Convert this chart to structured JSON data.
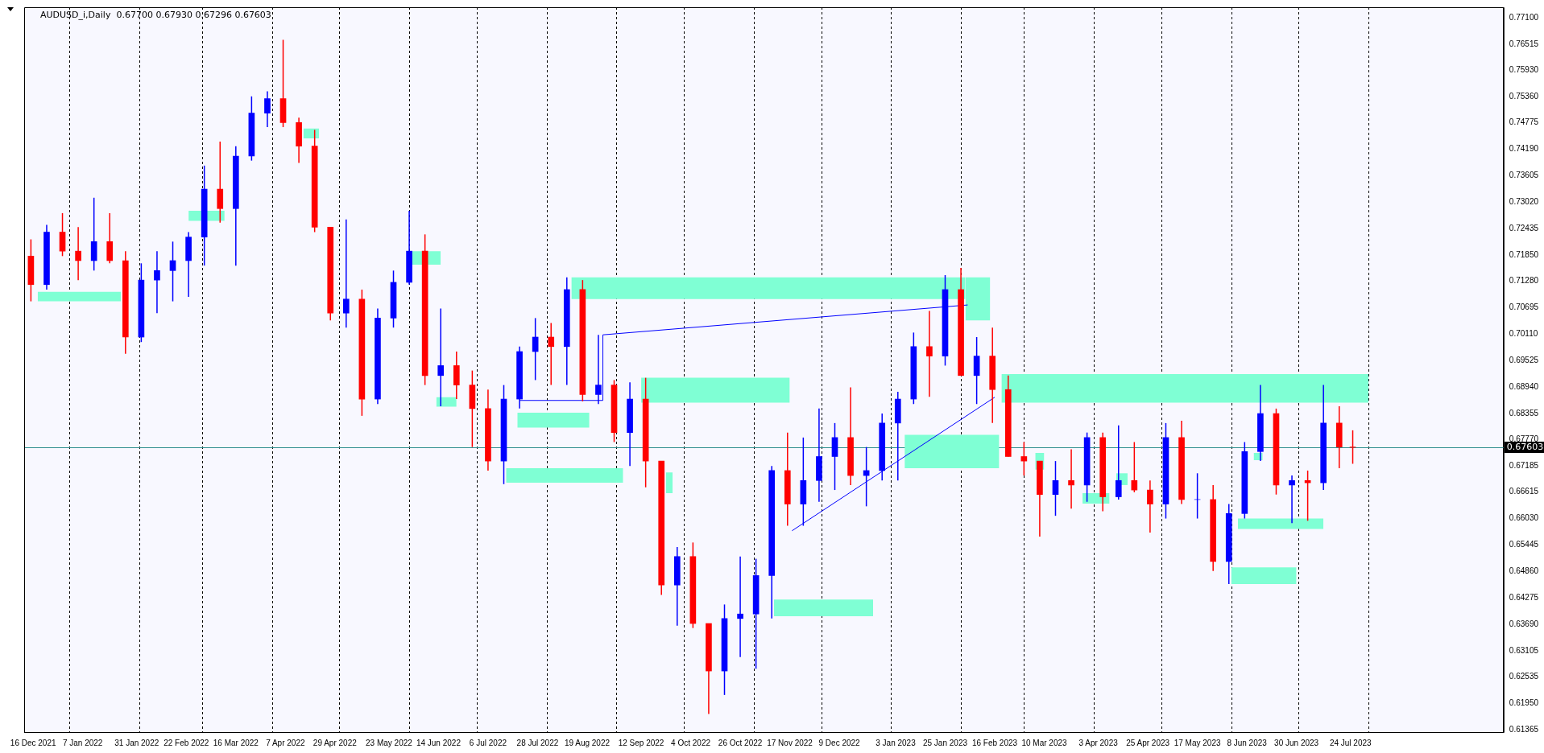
{
  "chart_data": {
    "type": "candlestick",
    "title": "AUDUSD_i,Daily  0.67700 0.67930 0.67296 0.67603",
    "x": [
      "2021-12-15",
      "2021-12-22",
      "2021-12-29",
      "2022-01-05",
      "2022-01-12",
      "2022-01-19",
      "2022-01-26",
      "2022-02-02",
      "2022-02-09",
      "2022-02-16",
      "2022-02-23",
      "2022-03-02",
      "2022-03-09",
      "2022-03-16",
      "2022-03-23",
      "2022-03-30",
      "2022-04-06",
      "2022-04-13",
      "2022-04-20",
      "2022-04-27",
      "2022-05-04",
      "2022-05-11",
      "2022-05-18",
      "2022-05-25",
      "2022-06-01",
      "2022-06-08",
      "2022-06-15",
      "2022-06-22",
      "2022-06-29",
      "2022-07-06",
      "2022-07-13",
      "2022-07-20",
      "2022-07-27",
      "2022-08-03",
      "2022-08-10",
      "2022-08-17",
      "2022-08-24",
      "2022-08-31",
      "2022-09-07",
      "2022-09-14",
      "2022-09-21",
      "2022-09-28",
      "2022-10-05",
      "2022-10-12",
      "2022-10-19",
      "2022-10-26",
      "2022-11-02",
      "2022-11-09",
      "2022-11-16",
      "2022-11-23",
      "2022-11-30",
      "2022-12-07",
      "2022-12-14",
      "2022-12-21",
      "2022-12-28",
      "2023-01-04",
      "2023-01-11",
      "2023-01-18",
      "2023-01-25",
      "2023-02-01",
      "2023-02-08",
      "2023-02-15",
      "2023-02-22",
      "2023-03-01",
      "2023-03-08",
      "2023-03-15",
      "2023-03-22",
      "2023-03-29",
      "2023-04-05",
      "2023-04-12",
      "2023-04-19",
      "2023-04-26",
      "2023-05-03",
      "2023-05-10",
      "2023-05-17",
      "2023-05-24",
      "2023-05-31",
      "2023-06-07",
      "2023-06-14",
      "2023-06-21",
      "2023-06-28",
      "2023-07-05",
      "2023-07-12",
      "2023-07-19",
      "2023-07-25"
    ],
    "ohlc": [
      [
        0.7183,
        0.722,
        0.7083,
        0.712
      ],
      [
        0.712,
        0.7252,
        0.7109,
        0.7236
      ],
      [
        0.7236,
        0.7278,
        0.7183,
        0.7194
      ],
      [
        0.7194,
        0.7247,
        0.713,
        0.7173
      ],
      [
        0.7173,
        0.7312,
        0.7151,
        0.7215
      ],
      [
        0.7215,
        0.7278,
        0.7167,
        0.7173
      ],
      [
        0.7173,
        0.7194,
        0.6967,
        0.7004
      ],
      [
        0.7004,
        0.7167,
        0.6993,
        0.713
      ],
      [
        0.713,
        0.7194,
        0.7057,
        0.7151
      ],
      [
        0.7151,
        0.7215,
        0.7083,
        0.7173
      ],
      [
        0.7173,
        0.7236,
        0.7093,
        0.7225
      ],
      [
        0.7225,
        0.7383,
        0.7162,
        0.7331
      ],
      [
        0.7331,
        0.7436,
        0.7257,
        0.7288
      ],
      [
        0.7288,
        0.7426,
        0.7162,
        0.7404
      ],
      [
        0.7404,
        0.7536,
        0.7394,
        0.7499
      ],
      [
        0.7499,
        0.7547,
        0.7468,
        0.7531
      ],
      [
        0.7531,
        0.7661,
        0.7468,
        0.7478
      ],
      [
        0.7478,
        0.7489,
        0.7389,
        0.7426
      ],
      [
        0.7426,
        0.7462,
        0.7236,
        0.7247
      ],
      [
        0.7247,
        0.7247,
        0.7041,
        0.7057
      ],
      [
        0.7057,
        0.7264,
        0.7025,
        0.7088
      ],
      [
        0.7088,
        0.7109,
        0.683,
        0.6867
      ],
      [
        0.6867,
        0.7067,
        0.6856,
        0.7046
      ],
      [
        0.7046,
        0.7151,
        0.7025,
        0.7125
      ],
      [
        0.7125,
        0.7283,
        0.712,
        0.7194
      ],
      [
        0.7194,
        0.7231,
        0.6898,
        0.6919
      ],
      [
        0.6919,
        0.7067,
        0.6851,
        0.6941
      ],
      [
        0.6941,
        0.6972,
        0.6867,
        0.6898
      ],
      [
        0.6898,
        0.693,
        0.6761,
        0.6846
      ],
      [
        0.6846,
        0.6888,
        0.6709,
        0.673
      ],
      [
        0.673,
        0.6898,
        0.6679,
        0.6867
      ],
      [
        0.6867,
        0.6983,
        0.6846,
        0.6972
      ],
      [
        0.6972,
        0.7046,
        0.6909,
        0.7004
      ],
      [
        0.7004,
        0.7035,
        0.6898,
        0.6983
      ],
      [
        0.6983,
        0.7136,
        0.6898,
        0.7109
      ],
      [
        0.7109,
        0.713,
        0.6862,
        0.6877
      ],
      [
        0.6877,
        0.7009,
        0.6856,
        0.6898
      ],
      [
        0.6898,
        0.6909,
        0.6772,
        0.6793
      ],
      [
        0.6793,
        0.6904,
        0.6719,
        0.6867
      ],
      [
        0.6867,
        0.6914,
        0.6672,
        0.673
      ],
      [
        0.673,
        0.673,
        0.6434,
        0.6456
      ],
      [
        0.6456,
        0.654,
        0.6366,
        0.6519
      ],
      [
        0.6519,
        0.655,
        0.6361,
        0.6371
      ],
      [
        0.6371,
        0.6371,
        0.6171,
        0.6266
      ],
      [
        0.6266,
        0.6413,
        0.6213,
        0.6382
      ],
      [
        0.6382,
        0.6519,
        0.6297,
        0.6392
      ],
      [
        0.6392,
        0.6514,
        0.6271,
        0.6477
      ],
      [
        0.6477,
        0.6719,
        0.6382,
        0.6709
      ],
      [
        0.6709,
        0.6793,
        0.6587,
        0.6635
      ],
      [
        0.6635,
        0.6782,
        0.6587,
        0.6687
      ],
      [
        0.6687,
        0.6846,
        0.664,
        0.674
      ],
      [
        0.674,
        0.6814,
        0.6666,
        0.6782
      ],
      [
        0.6782,
        0.6893,
        0.6677,
        0.6698
      ],
      [
        0.6698,
        0.6761,
        0.663,
        0.6709
      ],
      [
        0.6709,
        0.6835,
        0.6687,
        0.6814
      ],
      [
        0.6814,
        0.6883,
        0.6687,
        0.6867
      ],
      [
        0.6867,
        0.7014,
        0.6856,
        0.6983
      ],
      [
        0.6983,
        0.7062,
        0.6872,
        0.6962
      ],
      [
        0.6962,
        0.7141,
        0.6941,
        0.7109
      ],
      [
        0.7109,
        0.7157,
        0.6919,
        0.6919
      ],
      [
        0.6919,
        0.7004,
        0.6856,
        0.6962
      ],
      [
        0.6962,
        0.7025,
        0.6814,
        0.6888
      ],
      [
        0.6888,
        0.6919,
        0.674,
        0.674
      ],
      [
        0.674,
        0.6772,
        0.6698,
        0.673
      ],
      [
        0.673,
        0.673,
        0.6563,
        0.6656
      ],
      [
        0.6656,
        0.673,
        0.6609,
        0.6687
      ],
      [
        0.6687,
        0.6756,
        0.6625,
        0.6677
      ],
      [
        0.6677,
        0.6793,
        0.664,
        0.6782
      ],
      [
        0.6782,
        0.6793,
        0.6619,
        0.6651
      ],
      [
        0.6651,
        0.6809,
        0.6645,
        0.6687
      ],
      [
        0.6687,
        0.6772,
        0.6661,
        0.6666
      ],
      [
        0.6666,
        0.6687,
        0.6572,
        0.6635
      ],
      [
        0.6635,
        0.6814,
        0.6603,
        0.6782
      ],
      [
        0.6782,
        0.6819,
        0.6635,
        0.6645
      ],
      [
        0.6645,
        0.6703,
        0.6603,
        0.6645
      ],
      [
        0.6645,
        0.6677,
        0.6487,
        0.6508
      ],
      [
        0.6508,
        0.6635,
        0.6458,
        0.6614
      ],
      [
        0.6614,
        0.6772,
        0.6603,
        0.6751
      ],
      [
        0.6751,
        0.6898,
        0.673,
        0.6835
      ],
      [
        0.6835,
        0.6846,
        0.6656,
        0.6677
      ],
      [
        0.6677,
        0.6698,
        0.6593,
        0.6687
      ],
      [
        0.6687,
        0.6709,
        0.6598,
        0.6682
      ],
      [
        0.6682,
        0.6898,
        0.6666,
        0.6814
      ],
      [
        0.6814,
        0.6851,
        0.6714,
        0.6761
      ],
      [
        0.6761,
        0.6798,
        0.6724,
        0.67603
      ]
    ],
    "colors": [
      "#ff0000",
      "#0000ff",
      "#ff0000",
      "#ff0000",
      "#0000ff",
      "#ff0000",
      "#ff0000",
      "#0000ff",
      "#0000ff",
      "#0000ff",
      "#0000ff",
      "#0000ff",
      "#ff0000",
      "#0000ff",
      "#0000ff",
      "#0000ff",
      "#ff0000",
      "#ff0000",
      "#ff0000",
      "#ff0000",
      "#0000ff",
      "#ff0000",
      "#0000ff",
      "#0000ff",
      "#0000ff",
      "#ff0000",
      "#0000ff",
      "#ff0000",
      "#ff0000",
      "#ff0000",
      "#0000ff",
      "#0000ff",
      "#0000ff",
      "#ff0000",
      "#0000ff",
      "#ff0000",
      "#0000ff",
      "#ff0000",
      "#0000ff",
      "#ff0000",
      "#ff0000",
      "#0000ff",
      "#ff0000",
      "#ff0000",
      "#0000ff",
      "#0000ff",
      "#0000ff",
      "#0000ff",
      "#ff0000",
      "#0000ff",
      "#0000ff",
      "#0000ff",
      "#ff0000",
      "#0000ff",
      "#0000ff",
      "#0000ff",
      "#0000ff",
      "#ff0000",
      "#0000ff",
      "#ff0000",
      "#0000ff",
      "#ff0000",
      "#ff0000",
      "#ff0000",
      "#ff0000",
      "#0000ff",
      "#ff0000",
      "#0000ff",
      "#ff0000",
      "#0000ff",
      "#ff0000",
      "#ff0000",
      "#0000ff",
      "#ff0000",
      "#0000ff",
      "#ff0000",
      "#0000ff",
      "#0000ff",
      "#0000ff",
      "#ff0000",
      "#0000ff",
      "#ff0000",
      "#0000ff",
      "#ff0000",
      "#ff0000"
    ],
    "series": [
      {
        "type": "line",
        "color": "#7fffd4",
        "x": [
          "2021-12-18",
          "2022-01-24"
        ],
        "values": [
          null,
          null
        ],
        "lower": [
          0.7083,
          0.7083
        ],
        "upper": [
          0.7104,
          0.7104
        ]
      },
      {
        "type": "line",
        "color": "#7fffd4",
        "x": [
          "2022-02-23",
          "2022-03-11"
        ],
        "values": [
          null,
          null
        ],
        "lower": [
          0.7261,
          0.7261
        ],
        "upper": [
          0.7283,
          0.7283
        ]
      },
      {
        "type": "line",
        "color": "#7fffd4",
        "x": [
          "2022-04-15",
          "2022-04-22"
        ],
        "values": [
          null,
          null
        ],
        "lower": [
          0.7443,
          0.7443
        ],
        "upper": [
          0.7465,
          0.7465
        ]
      },
      {
        "type": "line",
        "color": "#7fffd4",
        "x": [
          "2022-06-02",
          "2022-06-15"
        ],
        "values": [
          null,
          null
        ],
        "lower": [
          0.7164,
          0.7164
        ],
        "upper": [
          0.7194,
          0.7194
        ]
      },
      {
        "type": "line",
        "color": "#7fffd4",
        "x": [
          "2022-06-13",
          "2022-06-22"
        ],
        "values": [
          null,
          null
        ],
        "lower": [
          0.685,
          0.685
        ],
        "upper": [
          0.6871,
          0.6871
        ]
      },
      {
        "type": "line",
        "color": "#7fffd4",
        "x": [
          "2022-07-19",
          "2022-08-20"
        ],
        "values": [
          null,
          null
        ],
        "lower": [
          0.6804,
          0.6804
        ],
        "upper": [
          0.6837,
          0.6837
        ]
      },
      {
        "type": "line",
        "color": "#7fffd4",
        "x": [
          "2022-07-14",
          "2022-09-04"
        ],
        "values": [
          null,
          null
        ],
        "lower": [
          0.6682,
          0.6682
        ],
        "upper": [
          0.6714,
          0.6714
        ]
      },
      {
        "type": "line",
        "color": "#7fffd4",
        "x": [
          "2022-08-12",
          "2023-02-03"
        ],
        "values": [
          null,
          null
        ],
        "lower": [
          0.7088,
          0.7088
        ],
        "upper": [
          0.7136,
          0.7136
        ]
      },
      {
        "type": "line",
        "color": "#7fffd4",
        "x": [
          "2023-02-03",
          "2023-02-14"
        ],
        "values": [
          null,
          null
        ],
        "lower": [
          0.7041,
          0.7041
        ],
        "upper": [
          0.7136,
          0.7136
        ]
      },
      {
        "type": "line",
        "color": "#7fffd4",
        "x": [
          "2022-09-12",
          "2022-11-17"
        ],
        "values": [
          null,
          null
        ],
        "lower": [
          0.6859,
          0.6859
        ],
        "upper": [
          0.6914,
          0.6914
        ]
      },
      {
        "type": "line",
        "color": "#7fffd4",
        "x": [
          "2022-09-23",
          "2022-09-26"
        ],
        "values": [
          null,
          null
        ],
        "lower": [
          0.6659,
          0.6659
        ],
        "upper": [
          0.6705,
          0.6705
        ]
      },
      {
        "type": "line",
        "color": "#7fffd4",
        "x": [
          "2022-11-10",
          "2022-12-24"
        ],
        "values": [
          null,
          null
        ],
        "lower": [
          0.6387,
          0.6387
        ],
        "upper": [
          0.6424,
          0.6424
        ]
      },
      {
        "type": "line",
        "color": "#7fffd4",
        "x": [
          "2023-01-07",
          "2023-02-18"
        ],
        "values": [
          null,
          null
        ],
        "lower": [
          0.6714,
          0.6714
        ],
        "upper": [
          0.6788,
          0.6788
        ]
      },
      {
        "type": "line",
        "color": "#7fffd4",
        "x": [
          "2023-02-19",
          "2023-08-01"
        ],
        "values": [
          null,
          null
        ],
        "lower": [
          0.6859,
          0.6859
        ],
        "upper": [
          0.6922,
          0.6922
        ]
      },
      {
        "type": "line",
        "color": "#7fffd4",
        "x": [
          "2023-03-06",
          "2023-03-10"
        ],
        "values": [
          null,
          null
        ],
        "lower": [
          0.6711,
          0.6711
        ],
        "upper": [
          0.6748,
          0.6748
        ]
      },
      {
        "type": "line",
        "color": "#7fffd4",
        "x": [
          "2023-03-27",
          "2023-04-08"
        ],
        "values": [
          null,
          null
        ],
        "lower": [
          0.6636,
          0.6636
        ],
        "upper": [
          0.6659,
          0.6659
        ]
      },
      {
        "type": "line",
        "color": "#7fffd4",
        "x": [
          "2023-04-11",
          "2023-04-16"
        ],
        "values": [
          null,
          null
        ],
        "lower": [
          0.6677,
          0.6677
        ],
        "upper": [
          0.6703,
          0.6703
        ]
      },
      {
        "type": "line",
        "color": "#7fffd4",
        "x": [
          "2023-06-11",
          "2023-06-15"
        ],
        "values": [
          null,
          null
        ],
        "lower": [
          0.6732,
          0.6732
        ],
        "upper": [
          0.6748,
          0.6748
        ]
      },
      {
        "type": "line",
        "color": "#7fffd4",
        "x": [
          "2023-06-04",
          "2023-07-12"
        ],
        "values": [
          null,
          null
        ],
        "lower": [
          0.658,
          0.658
        ],
        "upper": [
          0.6603,
          0.6603
        ]
      },
      {
        "type": "line",
        "color": "#7fffd4",
        "x": [
          "2023-06-01",
          "2023-06-30"
        ],
        "values": [
          null,
          null
        ],
        "lower": [
          0.6458,
          0.6458
        ],
        "upper": [
          0.6495,
          0.6495
        ]
      },
      {
        "type": "line",
        "color": "#0000ff",
        "x": [
          "2022-07-20",
          "2022-08-26",
          "2022-08-26",
          "2023-02-04"
        ],
        "values": [
          0.6864,
          0.6864,
          0.7009,
          0.7075
        ]
      },
      {
        "type": "line",
        "color": "#0000ff",
        "x": [
          "2022-11-18",
          "2023-02-16"
        ],
        "values": [
          0.6576,
          0.6871
        ]
      }
    ],
    "xlim": [
      "2021-12-12",
      "2023-09-30"
    ],
    "xticks": [
      {
        "value": "2021-12-16",
        "label": "16 Dec 2021"
      },
      {
        "value": "2022-01-07",
        "label": "7 Jan 2022"
      },
      {
        "value": "2022-01-31",
        "label": "31 Jan 2022"
      },
      {
        "value": "2022-02-22",
        "label": "22 Feb 2022"
      },
      {
        "value": "2022-03-16",
        "label": "16 Mar 2022"
      },
      {
        "value": "2022-04-07",
        "label": "7 Apr 2022"
      },
      {
        "value": "2022-04-29",
        "label": "29 Apr 2022"
      },
      {
        "value": "2022-05-23",
        "label": "23 May 2022"
      },
      {
        "value": "2022-06-14",
        "label": "14 Jun 2022"
      },
      {
        "value": "2022-07-06",
        "label": "6 Jul 2022"
      },
      {
        "value": "2022-07-28",
        "label": "28 Jul 2022"
      },
      {
        "value": "2022-08-19",
        "label": "19 Aug 2022"
      },
      {
        "value": "2022-09-12",
        "label": "12 Sep 2022"
      },
      {
        "value": "2022-10-04",
        "label": "4 Oct 2022"
      },
      {
        "value": "2022-10-26",
        "label": "26 Oct 2022"
      },
      {
        "value": "2022-11-17",
        "label": "17 Nov 2022"
      },
      {
        "value": "2022-12-09",
        "label": "9 Dec 2022"
      },
      {
        "value": "2023-01-03",
        "label": "3 Jan 2023"
      },
      {
        "value": "2023-01-25",
        "label": "25 Jan 2023"
      },
      {
        "value": "2023-02-16",
        "label": "16 Feb 2023"
      },
      {
        "value": "2023-03-10",
        "label": "10 Mar 2023"
      },
      {
        "value": "2023-04-03",
        "label": "3 Apr 2023"
      },
      {
        "value": "2023-04-25",
        "label": "25 Apr 2023"
      },
      {
        "value": "2023-05-17",
        "label": "17 May 2023"
      },
      {
        "value": "2023-06-08",
        "label": "8 Jun 2023"
      },
      {
        "value": "2023-06-30",
        "label": "30 Jun 2023"
      },
      {
        "value": "2023-07-24",
        "label": "24 Jul 2023"
      }
    ],
    "ylim": [
      0.6131,
      0.7733
    ],
    "yticks": [
      {
        "value": 0.771,
        "label": "0.77100"
      },
      {
        "value": 0.76515,
        "label": "0.76515"
      },
      {
        "value": 0.7593,
        "label": "0.75930"
      },
      {
        "value": 0.7536,
        "label": "0.75360"
      },
      {
        "value": 0.74775,
        "label": "0.74775"
      },
      {
        "value": 0.7419,
        "label": "0.74190"
      },
      {
        "value": 0.73605,
        "label": "0.73605"
      },
      {
        "value": 0.7302,
        "label": "0.73020"
      },
      {
        "value": 0.72435,
        "label": "0.72435"
      },
      {
        "value": 0.7185,
        "label": "0.71850"
      },
      {
        "value": 0.7128,
        "label": "0.71280"
      },
      {
        "value": 0.70695,
        "label": "0.70695"
      },
      {
        "value": 0.7011,
        "label": "0.70110"
      },
      {
        "value": 0.69525,
        "label": "0.69525"
      },
      {
        "value": 0.6894,
        "label": "0.68940"
      },
      {
        "value": 0.68355,
        "label": "0.68355"
      },
      {
        "value": 0.6777,
        "label": "0.67770"
      },
      {
        "value": 0.67185,
        "label": "0.67185"
      },
      {
        "value": 0.66615,
        "label": "0.66615"
      },
      {
        "value": 0.6603,
        "label": "0.66030"
      },
      {
        "value": 0.65445,
        "label": "0.65445"
      },
      {
        "value": 0.6486,
        "label": "0.64860"
      },
      {
        "value": 0.64275,
        "label": "0.64275"
      },
      {
        "value": 0.6369,
        "label": "0.63690"
      },
      {
        "value": 0.63105,
        "label": "0.63105"
      },
      {
        "value": 0.62535,
        "label": "0.62535"
      },
      {
        "value": 0.6195,
        "label": "0.61950"
      },
      {
        "value": 0.61365,
        "label": "0.61365"
      }
    ],
    "ref_lines": [
      {
        "axis": "x",
        "value": "2022-01-01",
        "line_style": "dashed",
        "color": "#000000"
      },
      {
        "axis": "x",
        "value": "2022-02-01",
        "line_style": "dashed",
        "color": "#000000"
      },
      {
        "axis": "x",
        "value": "2022-03-01",
        "line_style": "dashed",
        "color": "#000000"
      },
      {
        "axis": "x",
        "value": "2022-04-01",
        "line_style": "dashed",
        "color": "#000000"
      },
      {
        "axis": "x",
        "value": "2022-05-01",
        "line_style": "dashed",
        "color": "#000000"
      },
      {
        "axis": "x",
        "value": "2022-06-01",
        "line_style": "dashed",
        "color": "#000000"
      },
      {
        "axis": "x",
        "value": "2022-07-01",
        "line_style": "dashed",
        "color": "#000000"
      },
      {
        "axis": "x",
        "value": "2022-08-01",
        "line_style": "dashed",
        "color": "#000000"
      },
      {
        "axis": "x",
        "value": "2022-09-01",
        "line_style": "dashed",
        "color": "#000000"
      },
      {
        "axis": "x",
        "value": "2022-10-01",
        "line_style": "dashed",
        "color": "#000000"
      },
      {
        "axis": "x",
        "value": "2022-11-01",
        "line_style": "dashed",
        "color": "#000000"
      },
      {
        "axis": "x",
        "value": "2022-12-01",
        "line_style": "dashed",
        "color": "#000000"
      },
      {
        "axis": "x",
        "value": "2023-01-01",
        "line_style": "dashed",
        "color": "#000000"
      },
      {
        "axis": "x",
        "value": "2023-02-01",
        "line_style": "dashed",
        "color": "#000000"
      },
      {
        "axis": "x",
        "value": "2023-03-01",
        "line_style": "dashed",
        "color": "#000000"
      },
      {
        "axis": "x",
        "value": "2023-04-01",
        "line_style": "dashed",
        "color": "#000000"
      },
      {
        "axis": "x",
        "value": "2023-05-01",
        "line_style": "dashed",
        "color": "#000000"
      },
      {
        "axis": "x",
        "value": "2023-06-01",
        "line_style": "dashed",
        "color": "#000000"
      },
      {
        "axis": "x",
        "value": "2023-07-01",
        "line_style": "dashed",
        "color": "#000000"
      },
      {
        "axis": "x",
        "value": "2023-08-01",
        "line_style": "dashed",
        "color": "#000000"
      },
      {
        "axis": "y",
        "value": 0.67603,
        "label": "0.67603",
        "line_style": "solid",
        "color": "#2f8f8f"
      }
    ]
  }
}
